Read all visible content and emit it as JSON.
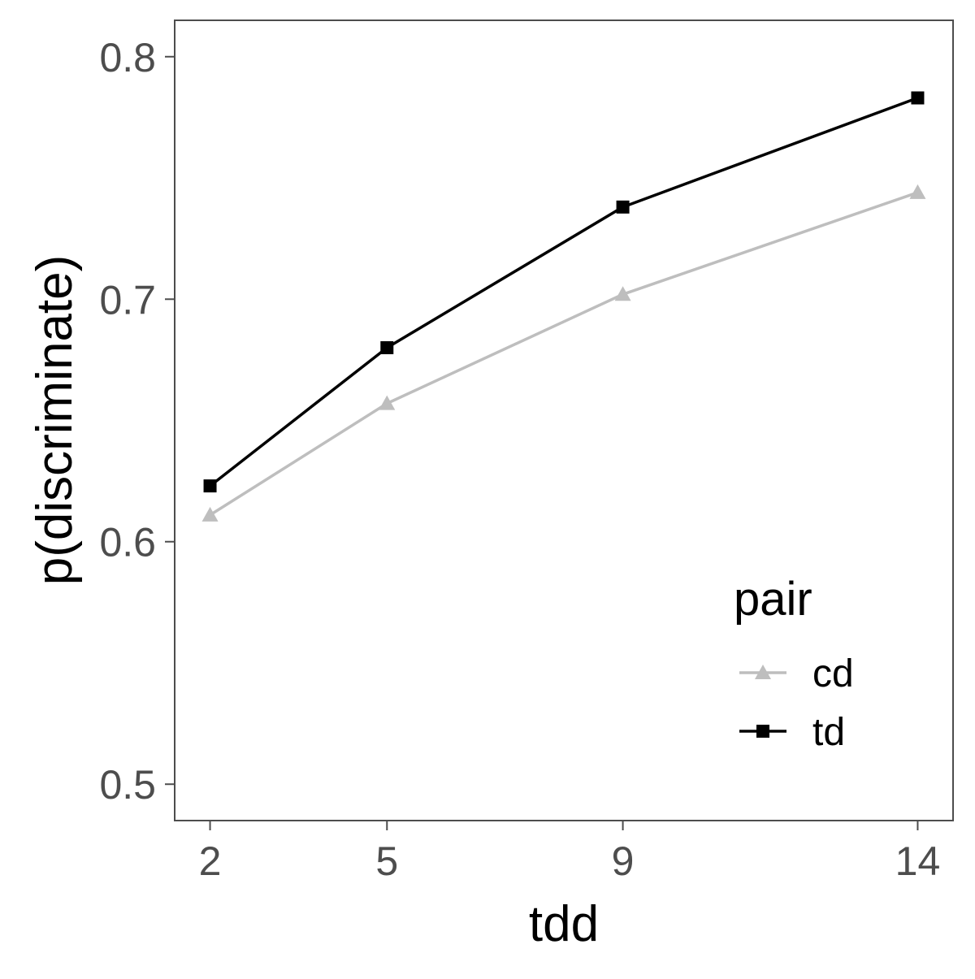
{
  "chart_data": {
    "type": "line",
    "x": [
      2,
      5,
      9,
      14
    ],
    "xlabel": "tdd",
    "ylabel": "p(discriminate)",
    "xlim": [
      1.4,
      14.6
    ],
    "ylim": [
      0.485,
      0.815
    ],
    "xticks": [
      2,
      5,
      9,
      14
    ],
    "yticks": [
      0.5,
      0.6,
      0.7,
      0.8
    ],
    "ytick_labels": [
      "0.5",
      "0.6",
      "0.7",
      "0.8"
    ],
    "grid": false,
    "legend": {
      "title": "pair",
      "position": "bottom-right inside"
    },
    "series": [
      {
        "name": "cd",
        "values": [
          0.611,
          0.657,
          0.702,
          0.744
        ],
        "color": "#bebebe",
        "marker": "triangle"
      },
      {
        "name": "td",
        "values": [
          0.623,
          0.68,
          0.738,
          0.783
        ],
        "color": "#000000",
        "marker": "square"
      }
    ]
  }
}
